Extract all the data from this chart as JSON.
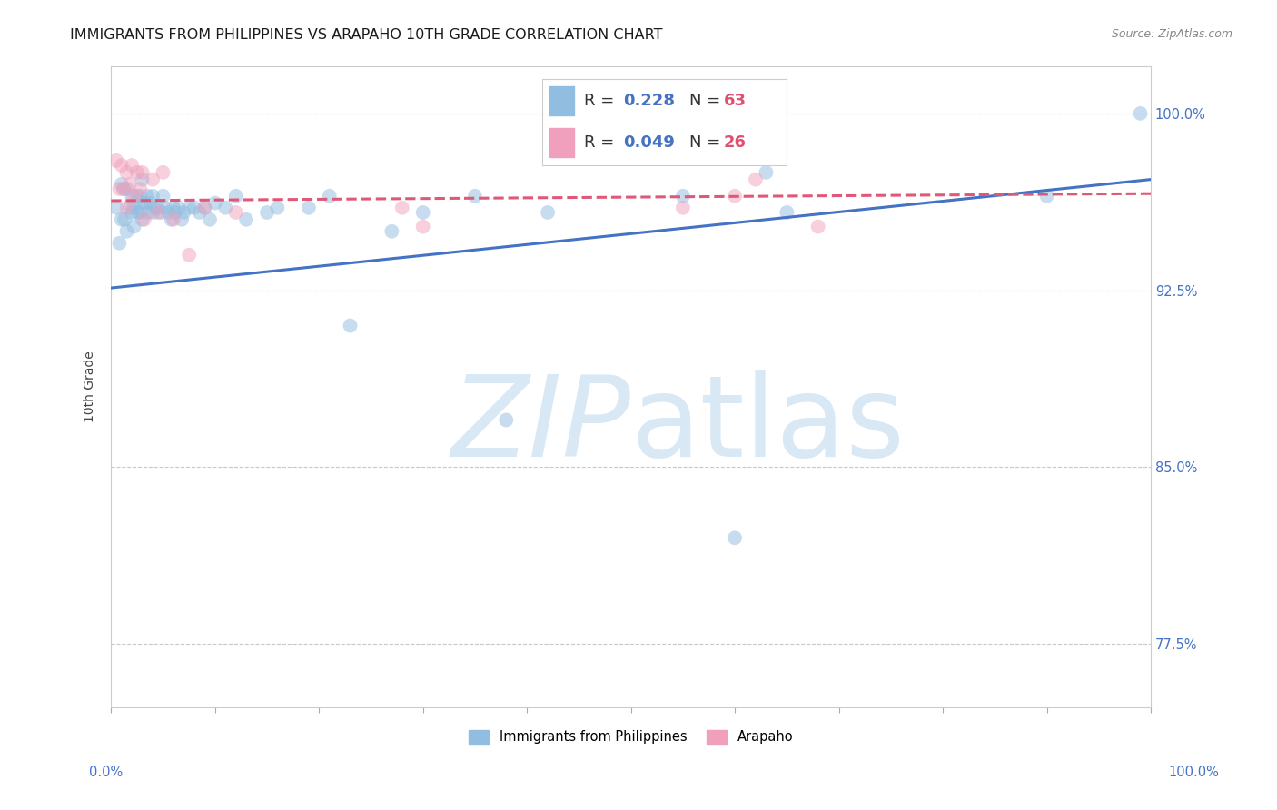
{
  "title": "IMMIGRANTS FROM PHILIPPINES VS ARAPAHO 10TH GRADE CORRELATION CHART",
  "source": "Source: ZipAtlas.com",
  "ylabel": "10th Grade",
  "ytick_labels": [
    "77.5%",
    "85.0%",
    "92.5%",
    "100.0%"
  ],
  "ytick_values": [
    0.775,
    0.85,
    0.925,
    1.0
  ],
  "legend_entries": [
    {
      "label": "Immigrants from Philippines",
      "color": "#a8c8e8",
      "R": "0.228",
      "N": "63"
    },
    {
      "label": "Arapaho",
      "color": "#f0a8c0",
      "R": "0.049",
      "N": "26"
    }
  ],
  "blue_scatter_x": [
    0.005,
    0.008,
    0.01,
    0.01,
    0.012,
    0.013,
    0.015,
    0.015,
    0.018,
    0.02,
    0.02,
    0.022,
    0.022,
    0.025,
    0.025,
    0.028,
    0.028,
    0.03,
    0.03,
    0.03,
    0.032,
    0.035,
    0.035,
    0.038,
    0.04,
    0.04,
    0.042,
    0.045,
    0.048,
    0.05,
    0.052,
    0.055,
    0.058,
    0.06,
    0.062,
    0.065,
    0.068,
    0.07,
    0.075,
    0.08,
    0.085,
    0.09,
    0.095,
    0.1,
    0.11,
    0.12,
    0.13,
    0.15,
    0.16,
    0.19,
    0.21,
    0.23,
    0.27,
    0.3,
    0.35,
    0.38,
    0.42,
    0.55,
    0.6,
    0.63,
    0.65,
    0.9,
    0.99
  ],
  "blue_scatter_y": [
    0.96,
    0.945,
    0.97,
    0.955,
    0.968,
    0.955,
    0.968,
    0.95,
    0.96,
    0.965,
    0.958,
    0.96,
    0.952,
    0.958,
    0.965,
    0.958,
    0.965,
    0.962,
    0.972,
    0.955,
    0.962,
    0.965,
    0.958,
    0.962,
    0.958,
    0.965,
    0.96,
    0.96,
    0.958,
    0.965,
    0.96,
    0.958,
    0.955,
    0.96,
    0.958,
    0.96,
    0.955,
    0.958,
    0.96,
    0.96,
    0.958,
    0.96,
    0.955,
    0.962,
    0.96,
    0.965,
    0.955,
    0.958,
    0.96,
    0.96,
    0.965,
    0.91,
    0.95,
    0.958,
    0.965,
    0.87,
    0.958,
    0.965,
    0.82,
    0.975,
    0.958,
    0.965,
    1.0
  ],
  "pink_scatter_x": [
    0.005,
    0.008,
    0.01,
    0.012,
    0.015,
    0.015,
    0.018,
    0.02,
    0.022,
    0.025,
    0.028,
    0.03,
    0.032,
    0.04,
    0.045,
    0.05,
    0.06,
    0.075,
    0.09,
    0.12,
    0.28,
    0.3,
    0.55,
    0.6,
    0.62,
    0.68
  ],
  "pink_scatter_y": [
    0.98,
    0.968,
    0.978,
    0.968,
    0.975,
    0.96,
    0.97,
    0.978,
    0.965,
    0.975,
    0.968,
    0.975,
    0.955,
    0.972,
    0.958,
    0.975,
    0.955,
    0.94,
    0.96,
    0.958,
    0.96,
    0.952,
    0.96,
    0.965,
    0.972,
    0.952
  ],
  "blue_line_x": [
    0.0,
    1.0
  ],
  "blue_line_y": [
    0.926,
    0.972
  ],
  "pink_line_x": [
    0.0,
    1.0
  ],
  "pink_line_y": [
    0.963,
    0.966
  ],
  "xlim": [
    0.0,
    1.0
  ],
  "ylim": [
    0.748,
    1.02
  ],
  "scatter_size": 130,
  "scatter_alpha": 0.5,
  "blue_color": "#90bde0",
  "pink_color": "#f0a0bc",
  "blue_line_color": "#4472c4",
  "pink_line_color": "#e05878",
  "grid_color": "#c8c8c8",
  "background_color": "#ffffff",
  "title_fontsize": 11.5,
  "axis_label_fontsize": 10,
  "tick_fontsize": 10.5,
  "legend_fontsize": 13
}
